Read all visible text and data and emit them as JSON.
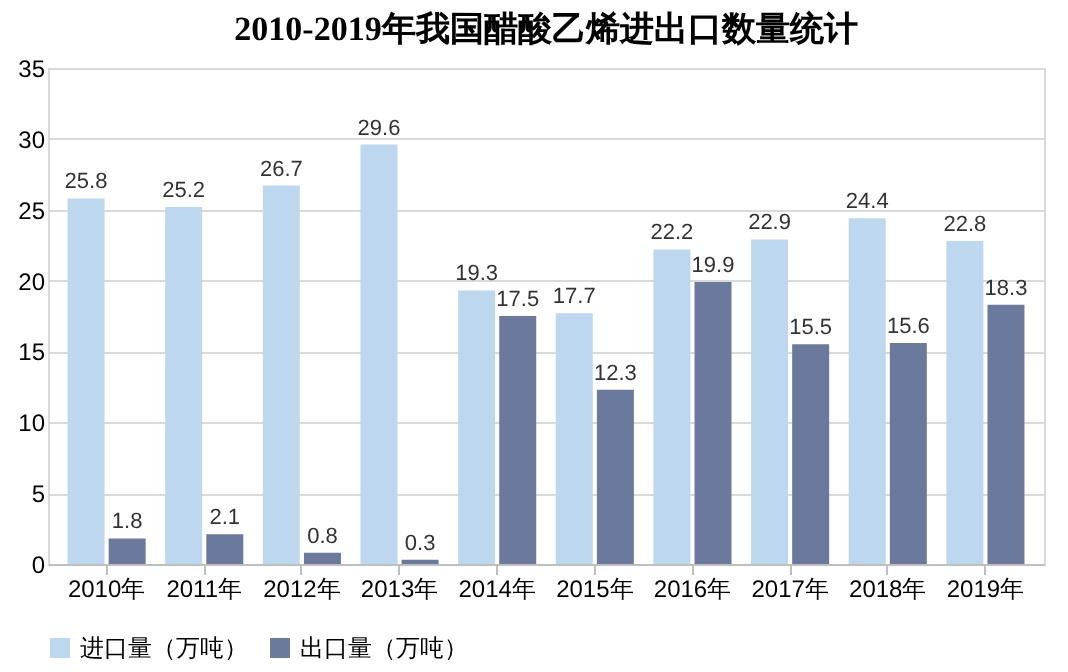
{
  "chart_data": {
    "type": "bar",
    "title": "2010-2019年我国醋酸乙烯进出口数量统计",
    "categories": [
      "2010年",
      "2011年",
      "2012年",
      "2013年",
      "2014年",
      "2015年",
      "2016年",
      "2017年",
      "2018年",
      "2019年"
    ],
    "series": [
      {
        "name": "进口量（万吨）",
        "color": "#bdd7ee",
        "values": [
          25.8,
          25.2,
          26.7,
          29.6,
          19.3,
          17.7,
          22.2,
          22.9,
          24.4,
          22.8
        ]
      },
      {
        "name": "出口量（万吨）",
        "color": "#6b7a9c",
        "values": [
          1.8,
          2.1,
          0.8,
          0.3,
          17.5,
          12.3,
          19.9,
          15.5,
          15.6,
          18.3
        ]
      }
    ],
    "ylim": [
      0,
      35
    ],
    "yticks": [
      0,
      5,
      10,
      15,
      20,
      25,
      30,
      35
    ],
    "grid": "y",
    "legend": "bottom",
    "data_labels": true
  }
}
